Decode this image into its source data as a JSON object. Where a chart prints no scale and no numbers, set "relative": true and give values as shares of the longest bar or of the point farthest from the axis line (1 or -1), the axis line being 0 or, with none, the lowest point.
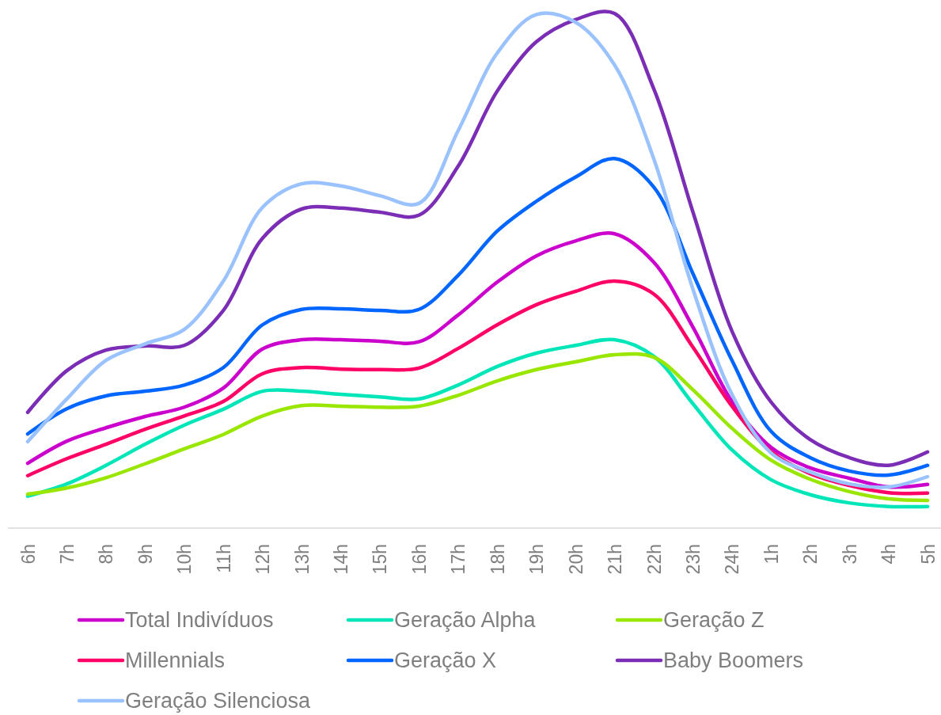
{
  "chart_data": {
    "type": "line",
    "relative": true,
    "legend": "bottom",
    "categories": [
      "6h",
      "7h",
      "8h",
      "9h",
      "10h",
      "11h",
      "12h",
      "13h",
      "14h",
      "15h",
      "16h",
      "17h",
      "18h",
      "19h",
      "20h",
      "21h",
      "22h",
      "23h",
      "24h",
      "1h",
      "2h",
      "3h",
      "4h",
      "5h"
    ],
    "series": [
      {
        "name": "Total Indivíduos",
        "color": "#cc00cc",
        "values": [
          0.126,
          0.169,
          0.195,
          0.217,
          0.235,
          0.272,
          0.348,
          0.366,
          0.366,
          0.363,
          0.362,
          0.414,
          0.478,
          0.529,
          0.558,
          0.572,
          0.517,
          0.391,
          0.246,
          0.157,
          0.117,
          0.097,
          0.08,
          0.085
        ]
      },
      {
        "name": "Geração Alpha",
        "color": "#00e6b8",
        "values": [
          0.062,
          0.086,
          0.122,
          0.163,
          0.2,
          0.231,
          0.266,
          0.266,
          0.26,
          0.255,
          0.251,
          0.278,
          0.314,
          0.34,
          0.355,
          0.366,
          0.334,
          0.242,
          0.152,
          0.094,
          0.065,
          0.049,
          0.042,
          0.042
        ]
      },
      {
        "name": "Geração Z",
        "color": "#99e600",
        "values": [
          0.066,
          0.078,
          0.098,
          0.125,
          0.154,
          0.182,
          0.218,
          0.238,
          0.237,
          0.235,
          0.237,
          0.258,
          0.286,
          0.308,
          0.323,
          0.337,
          0.332,
          0.269,
          0.194,
          0.132,
          0.095,
          0.071,
          0.057,
          0.054
        ]
      },
      {
        "name": "Millennials",
        "color": "#ff0066",
        "values": [
          0.102,
          0.135,
          0.163,
          0.192,
          0.218,
          0.246,
          0.3,
          0.312,
          0.309,
          0.308,
          0.311,
          0.349,
          0.395,
          0.434,
          0.46,
          0.48,
          0.455,
          0.352,
          0.237,
          0.149,
          0.106,
          0.083,
          0.069,
          0.068
        ]
      },
      {
        "name": "Geração X",
        "color": "#0066ff",
        "values": [
          0.183,
          0.232,
          0.257,
          0.266,
          0.278,
          0.312,
          0.395,
          0.425,
          0.426,
          0.423,
          0.425,
          0.491,
          0.577,
          0.635,
          0.682,
          0.718,
          0.663,
          0.495,
          0.326,
          0.188,
          0.137,
          0.111,
          0.103,
          0.122
        ]
      },
      {
        "name": "Baby Boomers",
        "color": "#7b2db5",
        "values": [
          0.225,
          0.306,
          0.346,
          0.354,
          0.355,
          0.423,
          0.563,
          0.62,
          0.622,
          0.614,
          0.608,
          0.703,
          0.849,
          0.945,
          0.988,
          1,
          0.854,
          0.615,
          0.383,
          0.245,
          0.172,
          0.137,
          0.122,
          0.148
        ]
      },
      {
        "name": "Geração Silenciosa",
        "color": "#99c2ff",
        "values": [
          0.168,
          0.251,
          0.326,
          0.358,
          0.386,
          0.48,
          0.623,
          0.669,
          0.665,
          0.646,
          0.631,
          0.772,
          0.923,
          0.998,
          0.983,
          0.9,
          0.718,
          0.465,
          0.26,
          0.146,
          0.109,
          0.086,
          0.08,
          0.1
        ]
      }
    ]
  }
}
